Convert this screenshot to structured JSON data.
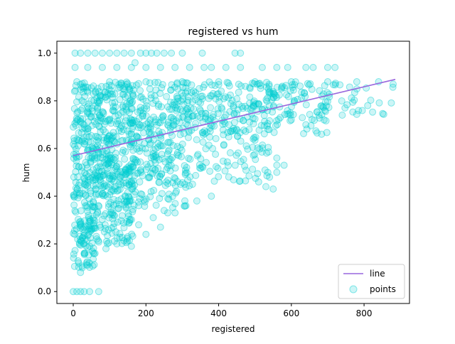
{
  "chart_data": {
    "type": "scatter",
    "title": "registered vs hum",
    "xlabel": "registered",
    "ylabel": "hum",
    "xlim": [
      -45,
      925
    ],
    "ylim": [
      -0.05,
      1.05
    ],
    "x_ticks": [
      0,
      200,
      400,
      600,
      800
    ],
    "y_ticks": [
      0.0,
      0.2,
      0.4,
      0.6,
      0.8,
      1.0
    ],
    "x_tick_labels": [
      "0",
      "200",
      "400",
      "600",
      "800"
    ],
    "y_tick_labels": [
      "0.0",
      "0.2",
      "0.4",
      "0.6",
      "0.8",
      "1.0"
    ],
    "grid": false,
    "legend_position": "lower right",
    "series": [
      {
        "name": "line",
        "kind": "line",
        "color": "#9966dd",
        "x": [
          0,
          886
        ],
        "y": [
          0.57,
          0.89
        ]
      },
      {
        "name": "points",
        "kind": "scatter",
        "color": "#00ced1",
        "alpha": 0.2,
        "point_clusters": [
          {
            "x_range": [
              0,
              165
            ],
            "y_range": [
              0.2,
              0.88
            ],
            "count": 420
          },
          {
            "x_range": [
              0,
              320
            ],
            "y_range": [
              0.35,
              0.88
            ],
            "count": 380
          },
          {
            "x_range": [
              150,
              540
            ],
            "y_range": [
              0.45,
              0.88
            ],
            "count": 260
          },
          {
            "x_range": [
              280,
              700
            ],
            "y_range": [
              0.65,
              0.88
            ],
            "count": 150
          },
          {
            "x_range": [
              480,
              890
            ],
            "y_range": [
              0.74,
              0.88
            ],
            "count": 80
          },
          {
            "x_range": [
              0,
              60
            ],
            "y_range": [
              0.1,
              0.3
            ],
            "count": 60
          }
        ],
        "points": [
          [
            0,
            0.0
          ],
          [
            10,
            0.0
          ],
          [
            20,
            0.0
          ],
          [
            30,
            0.0
          ],
          [
            45,
            0.0
          ],
          [
            70,
            0.0
          ],
          [
            5,
            1.0
          ],
          [
            20,
            1.0
          ],
          [
            40,
            1.0
          ],
          [
            60,
            1.0
          ],
          [
            80,
            1.0
          ],
          [
            100,
            1.0
          ],
          [
            120,
            1.0
          ],
          [
            140,
            1.0
          ],
          [
            160,
            1.0
          ],
          [
            185,
            1.0
          ],
          [
            200,
            1.0
          ],
          [
            215,
            1.0
          ],
          [
            230,
            1.0
          ],
          [
            250,
            1.0
          ],
          [
            270,
            1.0
          ],
          [
            300,
            1.0
          ],
          [
            355,
            1.0
          ],
          [
            445,
            1.0
          ],
          [
            460,
            1.0
          ],
          [
            5,
            0.94
          ],
          [
            40,
            0.94
          ],
          [
            80,
            0.94
          ],
          [
            120,
            0.94
          ],
          [
            160,
            0.94
          ],
          [
            200,
            0.94
          ],
          [
            240,
            0.94
          ],
          [
            280,
            0.94
          ],
          [
            320,
            0.94
          ],
          [
            360,
            0.94
          ],
          [
            380,
            0.94
          ],
          [
            420,
            0.94
          ],
          [
            460,
            0.94
          ],
          [
            520,
            0.94
          ],
          [
            560,
            0.94
          ],
          [
            590,
            0.94
          ],
          [
            640,
            0.94
          ],
          [
            660,
            0.94
          ],
          [
            700,
            0.94
          ],
          [
            720,
            0.94
          ],
          [
            10,
            0.88
          ],
          [
            100,
            0.88
          ],
          [
            200,
            0.88
          ],
          [
            300,
            0.88
          ],
          [
            400,
            0.88
          ],
          [
            500,
            0.88
          ],
          [
            600,
            0.88
          ],
          [
            700,
            0.88
          ],
          [
            780,
            0.88
          ],
          [
            840,
            0.88
          ],
          [
            880,
            0.87
          ],
          [
            810,
            0.78
          ],
          [
            740,
            0.74
          ],
          [
            690,
            0.72
          ],
          [
            640,
            0.7
          ],
          [
            600,
            0.72
          ],
          [
            560,
            0.56
          ],
          [
            560,
            0.53
          ],
          [
            560,
            0.5
          ],
          [
            580,
            0.53
          ],
          [
            540,
            0.48
          ],
          [
            530,
            0.44
          ],
          [
            550,
            0.43
          ],
          [
            510,
            0.46
          ],
          [
            380,
            0.4
          ],
          [
            340,
            0.38
          ],
          [
            310,
            0.36
          ],
          [
            260,
            0.33
          ],
          [
            220,
            0.31
          ],
          [
            180,
            0.28
          ],
          [
            150,
            0.23
          ],
          [
            120,
            0.2
          ],
          [
            90,
            0.18
          ],
          [
            60,
            0.16
          ],
          [
            30,
            0.16
          ],
          [
            15,
            0.12
          ],
          [
            20,
            0.08
          ],
          [
            25,
            0.1
          ],
          [
            160,
            0.19
          ],
          [
            200,
            0.24
          ],
          [
            240,
            0.27
          ],
          [
            280,
            0.33
          ],
          [
            250,
            0.34
          ],
          [
            170,
            0.96
          ]
        ]
      }
    ]
  }
}
